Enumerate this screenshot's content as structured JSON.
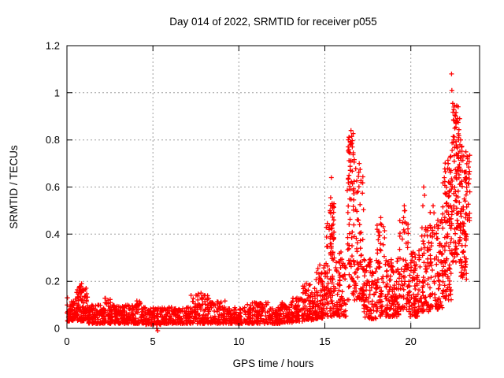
{
  "chart_data": {
    "type": "scatter",
    "title": "Day 014 of 2022, SRMTID for receiver p055",
    "xlabel": "GPS time / hours",
    "ylabel": "SRMTID / TECUs",
    "xlim": [
      0,
      24
    ],
    "ylim": [
      0,
      1.2
    ],
    "xtick_values": [
      0,
      5,
      10,
      15,
      20
    ],
    "xtick_labels": [
      "0",
      "5",
      "10",
      "15",
      "20"
    ],
    "ytick_values": [
      0,
      0.2,
      0.4,
      0.6,
      0.8,
      1.0,
      1.2
    ],
    "ytick_labels": [
      "0",
      "0.2",
      "0.4",
      "0.6",
      "0.8",
      "1",
      "1.2"
    ],
    "grid": true,
    "grid_color": "#9e9e9e",
    "marker": "plus",
    "marker_color": "#ff0000",
    "frame_color": "#000000",
    "legend": false,
    "seed": 2022014,
    "bands": [
      [
        0.0,
        0.55,
        70,
        0.03,
        0.13,
        1.5
      ],
      [
        0.55,
        1.2,
        90,
        0.03,
        0.18,
        1.3
      ],
      [
        1.2,
        2.2,
        110,
        0.02,
        0.1,
        1.5
      ],
      [
        2.2,
        2.6,
        40,
        0.02,
        0.13,
        1.5
      ],
      [
        2.6,
        4.0,
        140,
        0.02,
        0.1,
        1.5
      ],
      [
        4.0,
        4.45,
        40,
        0.02,
        0.12,
        1.5
      ],
      [
        4.45,
        5.45,
        90,
        0.015,
        0.09,
        1.5
      ],
      [
        5.45,
        7.2,
        160,
        0.02,
        0.09,
        1.5
      ],
      [
        7.2,
        8.25,
        100,
        0.02,
        0.15,
        1.5
      ],
      [
        8.25,
        9.2,
        80,
        0.02,
        0.12,
        1.5
      ],
      [
        9.2,
        10.4,
        100,
        0.02,
        0.09,
        1.5
      ],
      [
        10.4,
        11.7,
        110,
        0.02,
        0.11,
        1.5
      ],
      [
        11.7,
        12.45,
        70,
        0.02,
        0.09,
        1.5
      ],
      [
        12.45,
        13.1,
        60,
        0.025,
        0.11,
        1.4
      ],
      [
        13.1,
        13.7,
        55,
        0.03,
        0.13,
        1.4
      ],
      [
        13.7,
        14.45,
        80,
        0.035,
        0.2,
        1.5
      ],
      [
        14.45,
        15.05,
        80,
        0.04,
        0.27,
        1.6
      ],
      [
        15.05,
        15.45,
        55,
        0.05,
        0.45,
        2.0
      ],
      [
        15.3,
        15.55,
        25,
        0.3,
        0.55,
        1.0
      ],
      [
        15.45,
        16.25,
        90,
        0.05,
        0.33,
        1.8
      ],
      [
        16.3,
        16.75,
        60,
        0.12,
        0.8,
        1.4
      ],
      [
        16.35,
        16.7,
        25,
        0.55,
        0.84,
        1.0
      ],
      [
        16.75,
        17.25,
        60,
        0.12,
        0.68,
        1.4
      ],
      [
        17.25,
        18.05,
        90,
        0.04,
        0.3,
        1.7
      ],
      [
        18.0,
        18.5,
        60,
        0.05,
        0.45,
        1.8
      ],
      [
        18.5,
        19.35,
        110,
        0.05,
        0.3,
        1.5
      ],
      [
        19.35,
        19.85,
        60,
        0.08,
        0.5,
        1.7
      ],
      [
        19.85,
        20.6,
        90,
        0.05,
        0.33,
        1.6
      ],
      [
        20.6,
        21.15,
        70,
        0.07,
        0.45,
        1.6
      ],
      [
        21.1,
        21.85,
        90,
        0.08,
        0.5,
        1.4
      ],
      [
        21.85,
        22.35,
        100,
        0.12,
        0.75,
        1.2
      ],
      [
        22.35,
        22.85,
        110,
        0.28,
        0.95,
        1.1
      ],
      [
        22.85,
        23.25,
        80,
        0.2,
        0.78,
        1.2
      ],
      [
        23.2,
        23.45,
        25,
        0.45,
        0.75,
        1.0
      ]
    ],
    "highlights": [
      [
        0.85,
        0.19
      ],
      [
        0.78,
        0.17
      ],
      [
        0.92,
        0.165
      ],
      [
        5.22,
        0.0
      ],
      [
        5.28,
        -0.01
      ],
      [
        7.8,
        0.15
      ],
      [
        8.0,
        0.14
      ],
      [
        15.38,
        0.64
      ],
      [
        15.34,
        0.555
      ],
      [
        15.42,
        0.53
      ],
      [
        15.3,
        0.5
      ],
      [
        15.25,
        0.42
      ],
      [
        16.52,
        0.84
      ],
      [
        16.56,
        0.815
      ],
      [
        16.48,
        0.79
      ],
      [
        16.6,
        0.77
      ],
      [
        17.0,
        0.7
      ],
      [
        17.05,
        0.675
      ],
      [
        16.95,
        0.645
      ],
      [
        17.1,
        0.62
      ],
      [
        18.25,
        0.47
      ],
      [
        18.3,
        0.44
      ],
      [
        19.62,
        0.52
      ],
      [
        19.66,
        0.5
      ],
      [
        19.58,
        0.47
      ],
      [
        20.75,
        0.6
      ],
      [
        20.8,
        0.565
      ],
      [
        20.7,
        0.52
      ],
      [
        21.3,
        0.52
      ],
      [
        21.35,
        0.49
      ],
      [
        22.37,
        1.08
      ],
      [
        22.39,
        1.01
      ],
      [
        22.44,
        0.955
      ],
      [
        22.5,
        0.93
      ],
      [
        22.56,
        0.905
      ],
      [
        22.48,
        0.885
      ],
      [
        22.62,
        0.87
      ],
      [
        22.9,
        0.8
      ],
      [
        22.95,
        0.77
      ],
      [
        23.3,
        0.72
      ],
      [
        23.36,
        0.685
      ],
      [
        23.24,
        0.64
      ]
    ]
  }
}
